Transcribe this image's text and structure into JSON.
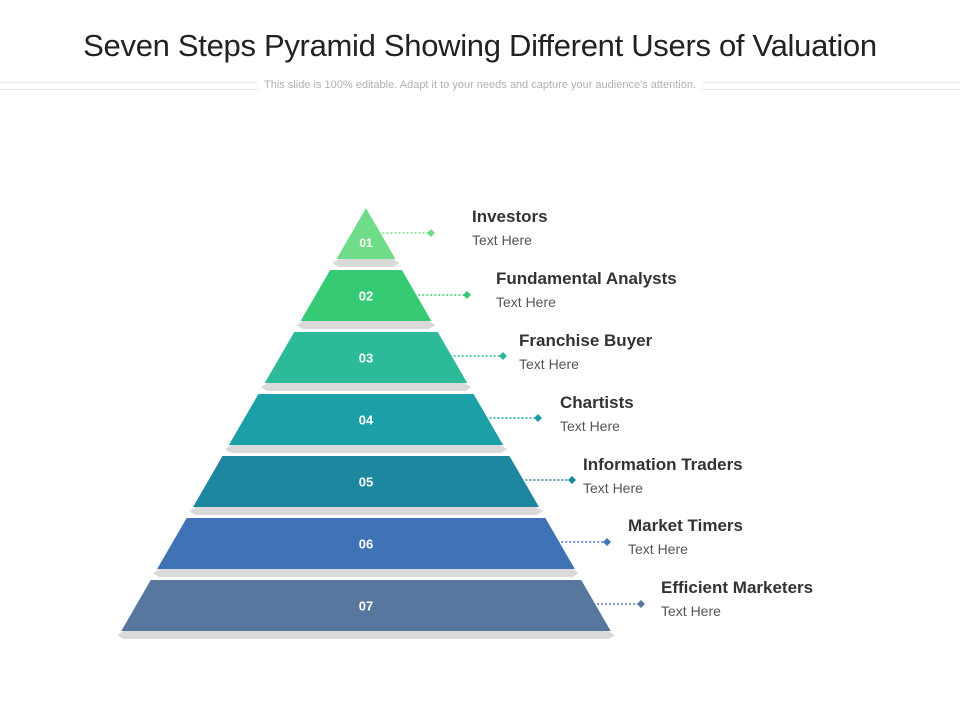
{
  "title": "Seven Steps Pyramid Showing Different Users of Valuation",
  "subtitle": "This slide is 100% editable. Adapt it to your needs and capture your audience's attention.",
  "steps": [
    {
      "number": "01",
      "title": "Investors",
      "text": "Text Here",
      "color": "#6fdc8a"
    },
    {
      "number": "02",
      "title": "Fundamental Analysts",
      "text": "Text Here",
      "color": "#37ca74"
    },
    {
      "number": "03",
      "title": "Franchise Buyer",
      "text": "Text Here",
      "color": "#2dba98"
    },
    {
      "number": "04",
      "title": "Chartists",
      "text": "Text Here",
      "color": "#1ca0a8"
    },
    {
      "number": "05",
      "title": "Information Traders",
      "text": "Text Here",
      "color": "#1f86a0"
    },
    {
      "number": "06",
      "title": "Market Timers",
      "text": "Text Here",
      "color": "#3f73b5"
    },
    {
      "number": "07",
      "title": "Efficient Marketers",
      "text": "Text Here",
      "color": "#57779f"
    }
  ]
}
